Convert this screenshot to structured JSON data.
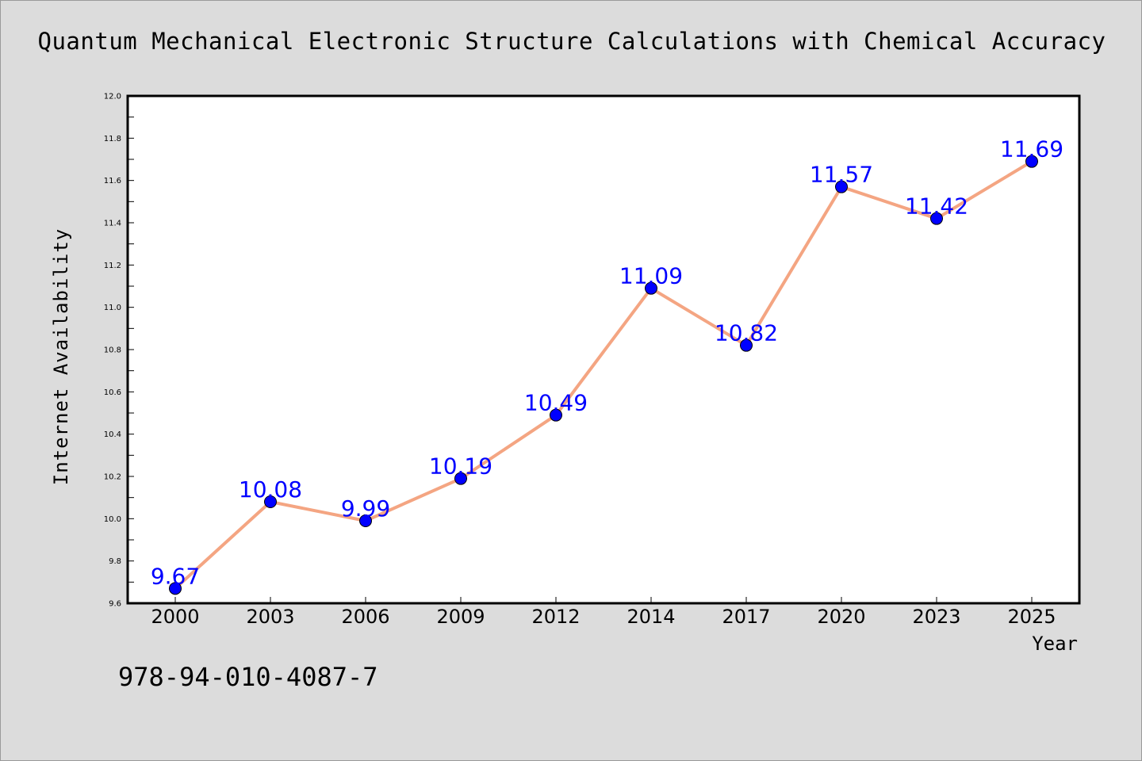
{
  "chart_data": {
    "type": "line",
    "title": "Quantum Mechanical Electronic Structure Calculations with Chemical Accuracy",
    "xlabel": "Year",
    "ylabel": "Internet Availability",
    "categories": [
      "2000",
      "2003",
      "2006",
      "2009",
      "2012",
      "2014",
      "2017",
      "2020",
      "2023",
      "2025"
    ],
    "series": [
      {
        "values": [
          9.67,
          10.08,
          9.99,
          10.19,
          10.49,
          11.09,
          10.82,
          11.57,
          11.42,
          11.69
        ]
      }
    ],
    "data_labels": [
      "9.67",
      "10.08",
      "9.99",
      "10.19",
      "10.49",
      "11.09",
      "10.82",
      "11.57",
      "11.42",
      "11.69"
    ],
    "ylim": [
      9.6,
      12.0
    ],
    "yticks": [
      "9.6",
      "9.8",
      "10.0",
      "10.2",
      "10.4",
      "10.6",
      "10.8",
      "11.0",
      "11.2",
      "11.4",
      "11.6",
      "11.8",
      "12.0"
    ],
    "grid": false,
    "line_color": "#f4a582",
    "marker_color": "#0000ff",
    "label_color": "#0000ff"
  },
  "footer_text": "978-94-010-4087-7"
}
